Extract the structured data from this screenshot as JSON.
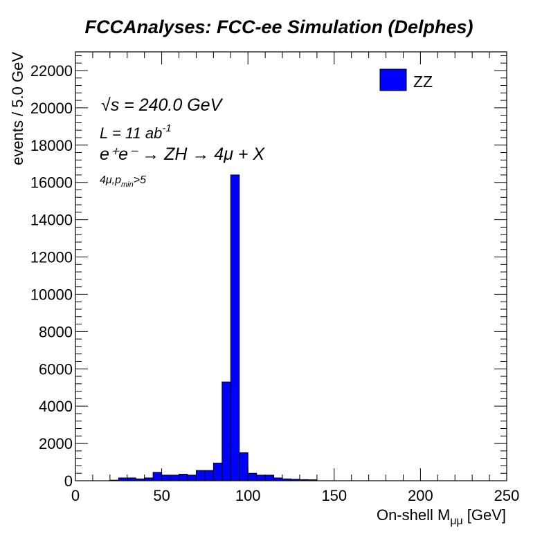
{
  "chart_data": {
    "type": "bar",
    "title": "FCCAnalyses: FCC-ee Simulation (Delphes)",
    "xlabel": "On-shell M",
    "xlabel_sub": "μμ",
    "xlabel_unit": "[GeV]",
    "ylabel": "events / 5.0 GeV",
    "xlim": [
      0,
      250
    ],
    "ylim": [
      0,
      23000
    ],
    "x_ticks": [
      0,
      50,
      100,
      150,
      200,
      250
    ],
    "y_ticks": [
      0,
      2000,
      4000,
      6000,
      8000,
      10000,
      12000,
      14000,
      16000,
      18000,
      20000,
      22000
    ],
    "bin_width": 5,
    "legend_position": "top-right",
    "series": [
      {
        "name": "ZZ",
        "color": "#0000ff",
        "bin_edges": [
          0,
          5,
          10,
          15,
          20,
          25,
          30,
          35,
          40,
          45,
          50,
          55,
          60,
          65,
          70,
          75,
          80,
          85,
          90,
          95,
          100,
          105,
          110,
          115,
          120,
          125,
          130,
          135,
          140,
          145,
          150,
          155,
          160,
          165,
          170,
          175,
          180,
          185,
          190,
          195,
          200,
          205,
          210,
          215,
          220,
          225,
          230,
          235,
          240,
          245,
          250
        ],
        "values": [
          0,
          0,
          0,
          0,
          30,
          150,
          150,
          100,
          150,
          450,
          300,
          300,
          350,
          300,
          550,
          550,
          950,
          5300,
          16400,
          1500,
          400,
          300,
          300,
          150,
          100,
          80,
          60,
          50,
          0,
          0,
          0,
          0,
          0,
          0,
          0,
          0,
          0,
          0,
          0,
          0,
          0,
          0,
          0,
          0,
          0,
          0,
          0,
          0,
          0,
          0
        ]
      }
    ],
    "annotations": {
      "energy": "√s = 240.0 GeV",
      "lumi_label": "L = 11 ab",
      "lumi_exp": "-1",
      "process": "e⁺e⁻ → ZH → 4μ + X",
      "selection_main": "4μ,p",
      "selection_sub": "min",
      "selection_tail": ">5"
    }
  }
}
